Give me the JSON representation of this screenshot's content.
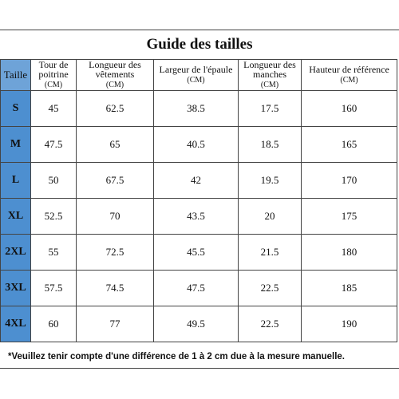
{
  "title": "Guide des tailles",
  "headers": [
    {
      "label": "Taille",
      "unit": ""
    },
    {
      "label": "Tour de poitrine",
      "unit": "(CM)"
    },
    {
      "label": "Longueur des vêtements",
      "unit": "(CM)"
    },
    {
      "label": "Largeur de l'épaule",
      "unit": "(CM)"
    },
    {
      "label": "Longueur des manches",
      "unit": "(CM)"
    },
    {
      "label": "Hauteur de référence",
      "unit": "(CM)"
    }
  ],
  "rows": [
    [
      "S",
      "45",
      "62.5",
      "38.5",
      "17.5",
      "160"
    ],
    [
      "M",
      "47.5",
      "65",
      "40.5",
      "18.5",
      "165"
    ],
    [
      "L",
      "50",
      "67.5",
      "42",
      "19.5",
      "170"
    ],
    [
      "XL",
      "52.5",
      "70",
      "43.5",
      "20",
      "175"
    ],
    [
      "2XL",
      "55",
      "72.5",
      "45.5",
      "21.5",
      "180"
    ],
    [
      "3XL",
      "57.5",
      "74.5",
      "47.5",
      "22.5",
      "185"
    ],
    [
      "4XL",
      "60",
      "77",
      "49.5",
      "22.5",
      "190"
    ]
  ],
  "note": "*Veuillez tenir compte d'une différence de 1 à 2 cm due à la mesure manuelle.",
  "colors": {
    "size_column": "#4d8fd0",
    "header_taille": "#6ea3d8",
    "border": "#444444"
  }
}
